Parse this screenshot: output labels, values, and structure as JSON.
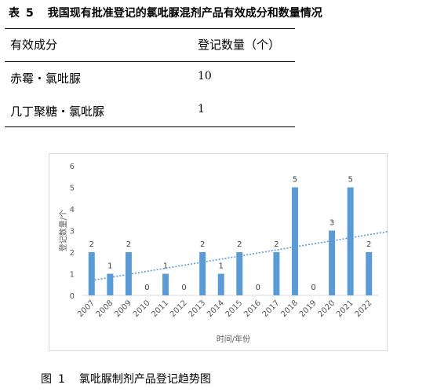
{
  "table": {
    "label": "表",
    "number": "5",
    "title": "我国现有批准登记的氯吡脲混剂产品有效成分和数量情况",
    "headers": [
      "有效成分",
      "登记数量（个）"
    ],
    "rows": [
      {
        "ingredient": "赤霉・氯吡脲",
        "count": "10"
      },
      {
        "ingredient": "几丁聚糖・氯吡脲",
        "count": "1"
      }
    ]
  },
  "figure": {
    "label": "图",
    "number": "1",
    "title": "氯吡脲制剂产品登记趋势图"
  },
  "chart_data": {
    "type": "bar",
    "categories": [
      "2007",
      "2008",
      "2009",
      "2010",
      "2011",
      "2012",
      "2013",
      "2014",
      "2015",
      "2016",
      "2017",
      "2018",
      "2019",
      "2020",
      "2021",
      "2022"
    ],
    "values": [
      2,
      1,
      2,
      0,
      1,
      0,
      2,
      1,
      2,
      0,
      2,
      5,
      0,
      3,
      5,
      2
    ],
    "xlabel": "时间/年份",
    "ylabel": "登记数量/个",
    "ylim": [
      0,
      6
    ],
    "yticks": [
      "0",
      "1",
      "2",
      "3",
      "4",
      "5",
      "6"
    ],
    "data_labels": true,
    "trendline": "linear",
    "grid": false,
    "colors": {
      "bar": "#5b9bd5",
      "trendline": "#5b9bd5",
      "axis": "#d9d9d9",
      "tick_text": "#595959"
    }
  }
}
